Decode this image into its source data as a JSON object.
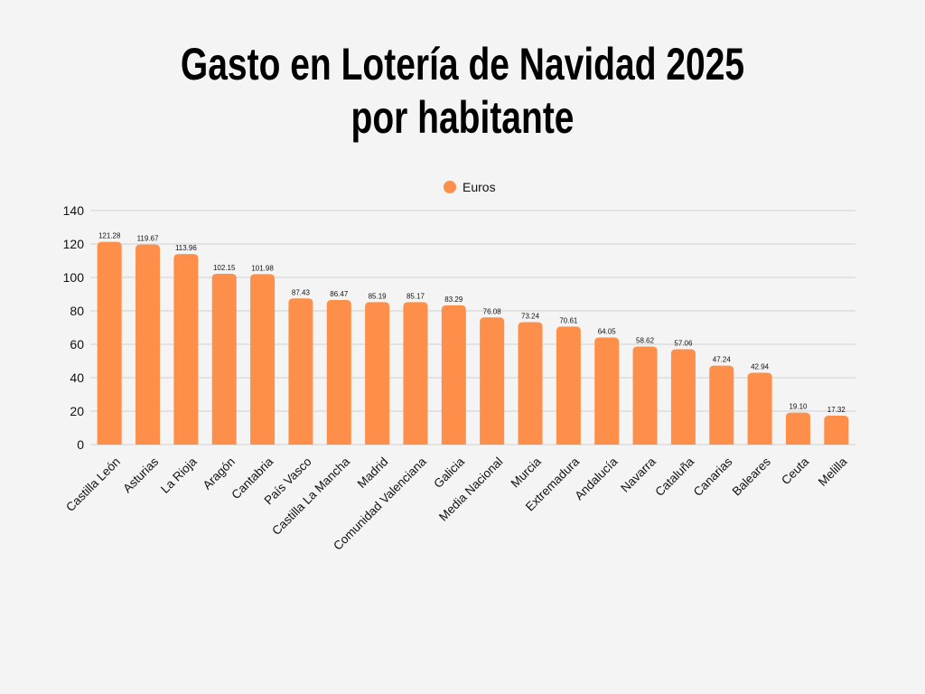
{
  "chart_data": {
    "type": "bar",
    "title": [
      "Gasto en Lotería de Navidad 2025",
      "por habitante"
    ],
    "xlabel": "",
    "ylabel": "",
    "ylim": [
      0,
      140
    ],
    "yticks": [
      0,
      20,
      40,
      60,
      80,
      100,
      120,
      140
    ],
    "grid": true,
    "legend_placement": "top-center",
    "bar_color": "#fd8f4a",
    "categories": [
      "Castilla León",
      "Asturias",
      "La Rioja",
      "Aragón",
      "Cantabria",
      "País Vasco",
      "Castilla La Mancha",
      "Madrid",
      "Comunidad Valenciana",
      "Galicia",
      "Media Nacional",
      "Murcia",
      "Extremadura",
      "Andalucía",
      "Navarra",
      "Cataluña",
      "Canarias",
      "Baleares",
      "Ceuta",
      "Melilla"
    ],
    "series": [
      {
        "name": "Euros",
        "values": [
          121.28,
          119.67,
          113.96,
          102.15,
          101.98,
          87.43,
          86.47,
          85.19,
          85.17,
          83.29,
          76.08,
          73.24,
          70.61,
          64.05,
          58.62,
          57.06,
          47.24,
          42.94,
          19.1,
          17.32
        ]
      }
    ],
    "data_labels": [
      "121.28",
      "119.67",
      "113.96",
      "102.15",
      "101.98",
      "87.43",
      "86.47",
      "85.19",
      "85.17",
      "83.29",
      "76.08",
      "73.24",
      "70.61",
      "64.05",
      "58.62",
      "57.06",
      "47.24",
      "42.94",
      "19.10",
      "17.32"
    ]
  }
}
